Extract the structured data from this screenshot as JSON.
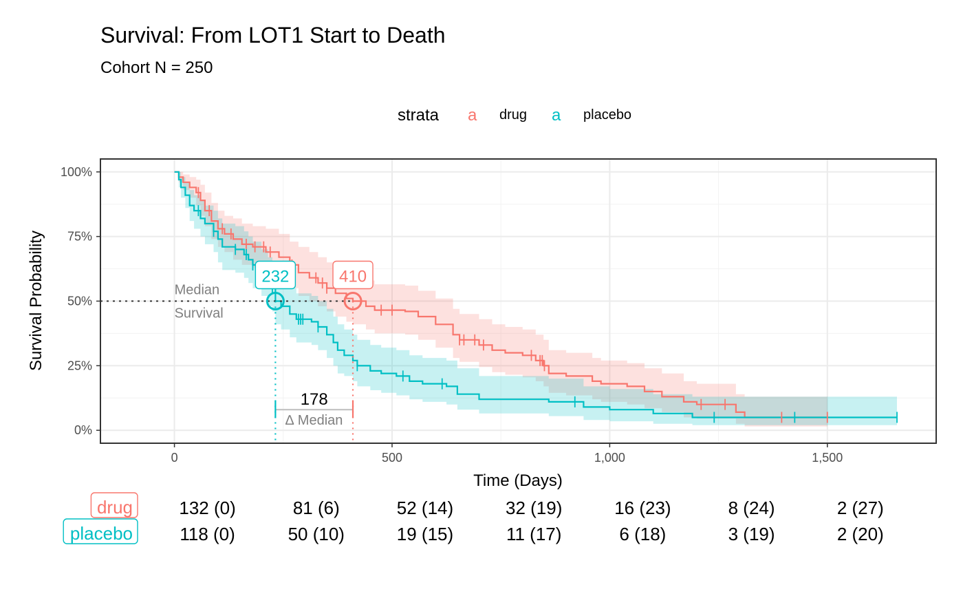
{
  "chart_data": {
    "type": "line",
    "subtype": "kaplan-meier",
    "title": "Survival: From LOT1 Start to Death",
    "subtitle": "Cohort N = 250",
    "xlabel": "Time (Days)",
    "ylabel": "Survival Probability",
    "xlim": [
      -170,
      1750
    ],
    "ylim": [
      -0.05,
      1.05
    ],
    "x_ticks": [
      0,
      500,
      1000,
      1500
    ],
    "x_tick_labels": [
      "0",
      "500",
      "1,000",
      "1,500"
    ],
    "y_ticks": [
      0,
      0.25,
      0.5,
      0.75,
      1
    ],
    "y_tick_labels": [
      "0%",
      "25%",
      "50%",
      "75%",
      "100%"
    ],
    "grid": true,
    "legend": {
      "title": "strata",
      "position": "top",
      "key_glyph": "a"
    },
    "colors": {
      "drug": "#F8766D",
      "placebo": "#00BFC4"
    },
    "series": [
      {
        "name": "drug",
        "color": "#F8766D",
        "steps": [
          [
            0,
            1.0
          ],
          [
            10,
            0.98
          ],
          [
            20,
            0.96
          ],
          [
            35,
            0.94
          ],
          [
            50,
            0.92
          ],
          [
            60,
            0.89
          ],
          [
            70,
            0.85
          ],
          [
            85,
            0.81
          ],
          [
            100,
            0.78
          ],
          [
            115,
            0.76
          ],
          [
            135,
            0.74
          ],
          [
            155,
            0.72
          ],
          [
            180,
            0.71
          ],
          [
            210,
            0.69
          ],
          [
            240,
            0.67
          ],
          [
            265,
            0.64
          ],
          [
            285,
            0.61
          ],
          [
            310,
            0.59
          ],
          [
            330,
            0.57
          ],
          [
            350,
            0.55
          ],
          [
            370,
            0.53
          ],
          [
            395,
            0.51
          ],
          [
            410,
            0.5
          ],
          [
            440,
            0.48
          ],
          [
            460,
            0.465
          ],
          [
            530,
            0.46
          ],
          [
            560,
            0.44
          ],
          [
            600,
            0.41
          ],
          [
            640,
            0.37
          ],
          [
            655,
            0.35
          ],
          [
            700,
            0.33
          ],
          [
            730,
            0.31
          ],
          [
            760,
            0.3
          ],
          [
            800,
            0.29
          ],
          [
            830,
            0.27
          ],
          [
            848,
            0.25
          ],
          [
            860,
            0.22
          ],
          [
            900,
            0.21
          ],
          [
            960,
            0.19
          ],
          [
            980,
            0.18
          ],
          [
            1040,
            0.17
          ],
          [
            1080,
            0.15
          ],
          [
            1120,
            0.13
          ],
          [
            1170,
            0.11
          ],
          [
            1200,
            0.1
          ],
          [
            1290,
            0.07
          ],
          [
            1310,
            0.05
          ],
          [
            1500,
            0.05
          ]
        ],
        "lower": [
          [
            0,
            1.0
          ],
          [
            10,
            0.96
          ],
          [
            20,
            0.93
          ],
          [
            35,
            0.9
          ],
          [
            50,
            0.87
          ],
          [
            60,
            0.83
          ],
          [
            70,
            0.79
          ],
          [
            85,
            0.74
          ],
          [
            100,
            0.71
          ],
          [
            115,
            0.69
          ],
          [
            135,
            0.66
          ],
          [
            155,
            0.64
          ],
          [
            180,
            0.63
          ],
          [
            210,
            0.61
          ],
          [
            240,
            0.58
          ],
          [
            265,
            0.55
          ],
          [
            285,
            0.52
          ],
          [
            310,
            0.5
          ],
          [
            330,
            0.48
          ],
          [
            350,
            0.46
          ],
          [
            370,
            0.44
          ],
          [
            395,
            0.42
          ],
          [
            410,
            0.41
          ],
          [
            440,
            0.39
          ],
          [
            460,
            0.375
          ],
          [
            530,
            0.37
          ],
          [
            560,
            0.35
          ],
          [
            600,
            0.32
          ],
          [
            640,
            0.28
          ],
          [
            655,
            0.265
          ],
          [
            700,
            0.245
          ],
          [
            730,
            0.225
          ],
          [
            760,
            0.215
          ],
          [
            800,
            0.205
          ],
          [
            830,
            0.19
          ],
          [
            848,
            0.17
          ],
          [
            860,
            0.145
          ],
          [
            900,
            0.135
          ],
          [
            960,
            0.12
          ],
          [
            980,
            0.11
          ],
          [
            1040,
            0.1
          ],
          [
            1080,
            0.085
          ],
          [
            1120,
            0.07
          ],
          [
            1170,
            0.05
          ],
          [
            1200,
            0.045
          ],
          [
            1290,
            0.025
          ],
          [
            1310,
            0.015
          ],
          [
            1500,
            0.015
          ]
        ],
        "upper": [
          [
            0,
            1.0
          ],
          [
            10,
            1.0
          ],
          [
            20,
            0.99
          ],
          [
            35,
            0.98
          ],
          [
            50,
            0.97
          ],
          [
            60,
            0.95
          ],
          [
            70,
            0.92
          ],
          [
            85,
            0.88
          ],
          [
            100,
            0.85
          ],
          [
            115,
            0.83
          ],
          [
            135,
            0.82
          ],
          [
            155,
            0.8
          ],
          [
            180,
            0.79
          ],
          [
            210,
            0.78
          ],
          [
            240,
            0.76
          ],
          [
            265,
            0.73
          ],
          [
            285,
            0.71
          ],
          [
            310,
            0.69
          ],
          [
            330,
            0.67
          ],
          [
            350,
            0.65
          ],
          [
            370,
            0.63
          ],
          [
            395,
            0.61
          ],
          [
            410,
            0.6
          ],
          [
            440,
            0.58
          ],
          [
            460,
            0.565
          ],
          [
            530,
            0.56
          ],
          [
            560,
            0.54
          ],
          [
            600,
            0.51
          ],
          [
            640,
            0.47
          ],
          [
            655,
            0.45
          ],
          [
            700,
            0.43
          ],
          [
            730,
            0.41
          ],
          [
            760,
            0.4
          ],
          [
            800,
            0.39
          ],
          [
            830,
            0.37
          ],
          [
            848,
            0.35
          ],
          [
            860,
            0.31
          ],
          [
            900,
            0.3
          ],
          [
            960,
            0.28
          ],
          [
            980,
            0.27
          ],
          [
            1040,
            0.26
          ],
          [
            1080,
            0.24
          ],
          [
            1120,
            0.22
          ],
          [
            1170,
            0.19
          ],
          [
            1200,
            0.18
          ],
          [
            1290,
            0.14
          ],
          [
            1310,
            0.13
          ],
          [
            1500,
            0.13
          ]
        ],
        "censor_times": [
          55,
          80,
          110,
          130,
          165,
          185,
          205,
          220,
          265,
          270,
          325,
          340,
          350,
          475,
          500,
          655,
          665,
          690,
          710,
          820,
          840,
          845,
          850,
          1210,
          1265,
          1395,
          1500
        ]
      },
      {
        "name": "placebo",
        "color": "#00BFC4",
        "steps": [
          [
            0,
            1.0
          ],
          [
            10,
            0.97
          ],
          [
            15,
            0.94
          ],
          [
            25,
            0.91
          ],
          [
            35,
            0.87
          ],
          [
            45,
            0.85
          ],
          [
            60,
            0.82
          ],
          [
            70,
            0.8
          ],
          [
            90,
            0.77
          ],
          [
            100,
            0.74
          ],
          [
            110,
            0.71
          ],
          [
            140,
            0.7
          ],
          [
            160,
            0.68
          ],
          [
            170,
            0.66
          ],
          [
            180,
            0.64
          ],
          [
            200,
            0.61
          ],
          [
            215,
            0.57
          ],
          [
            225,
            0.55
          ],
          [
            232,
            0.5
          ],
          [
            245,
            0.48
          ],
          [
            265,
            0.45
          ],
          [
            280,
            0.43
          ],
          [
            315,
            0.42
          ],
          [
            330,
            0.4
          ],
          [
            350,
            0.37
          ],
          [
            365,
            0.34
          ],
          [
            375,
            0.31
          ],
          [
            390,
            0.29
          ],
          [
            410,
            0.27
          ],
          [
            420,
            0.25
          ],
          [
            450,
            0.23
          ],
          [
            475,
            0.22
          ],
          [
            510,
            0.21
          ],
          [
            540,
            0.19
          ],
          [
            570,
            0.18
          ],
          [
            625,
            0.17
          ],
          [
            650,
            0.14
          ],
          [
            700,
            0.12
          ],
          [
            860,
            0.11
          ],
          [
            940,
            0.09
          ],
          [
            1000,
            0.08
          ],
          [
            1100,
            0.065
          ],
          [
            1190,
            0.05
          ],
          [
            1660,
            0.05
          ]
        ],
        "lower": [
          [
            0,
            1.0
          ],
          [
            10,
            0.94
          ],
          [
            15,
            0.9
          ],
          [
            25,
            0.86
          ],
          [
            35,
            0.81
          ],
          [
            45,
            0.78
          ],
          [
            60,
            0.75
          ],
          [
            70,
            0.72
          ],
          [
            90,
            0.69
          ],
          [
            100,
            0.65
          ],
          [
            110,
            0.62
          ],
          [
            140,
            0.61
          ],
          [
            160,
            0.59
          ],
          [
            170,
            0.57
          ],
          [
            180,
            0.55
          ],
          [
            200,
            0.52
          ],
          [
            215,
            0.48
          ],
          [
            225,
            0.46
          ],
          [
            232,
            0.41
          ],
          [
            245,
            0.39
          ],
          [
            265,
            0.36
          ],
          [
            280,
            0.34
          ],
          [
            315,
            0.33
          ],
          [
            330,
            0.31
          ],
          [
            350,
            0.28
          ],
          [
            365,
            0.25
          ],
          [
            375,
            0.22
          ],
          [
            390,
            0.21
          ],
          [
            410,
            0.19
          ],
          [
            420,
            0.17
          ],
          [
            450,
            0.155
          ],
          [
            475,
            0.145
          ],
          [
            510,
            0.135
          ],
          [
            540,
            0.12
          ],
          [
            570,
            0.11
          ],
          [
            625,
            0.1
          ],
          [
            650,
            0.08
          ],
          [
            700,
            0.065
          ],
          [
            860,
            0.055
          ],
          [
            940,
            0.04
          ],
          [
            1000,
            0.035
          ],
          [
            1100,
            0.025
          ],
          [
            1190,
            0.02
          ],
          [
            1660,
            0.02
          ]
        ],
        "upper": [
          [
            0,
            1.0
          ],
          [
            10,
            1.0
          ],
          [
            15,
            0.98
          ],
          [
            25,
            0.96
          ],
          [
            35,
            0.93
          ],
          [
            45,
            0.91
          ],
          [
            60,
            0.89
          ],
          [
            70,
            0.87
          ],
          [
            90,
            0.85
          ],
          [
            100,
            0.82
          ],
          [
            110,
            0.8
          ],
          [
            140,
            0.79
          ],
          [
            160,
            0.77
          ],
          [
            170,
            0.75
          ],
          [
            180,
            0.73
          ],
          [
            200,
            0.7
          ],
          [
            215,
            0.67
          ],
          [
            225,
            0.65
          ],
          [
            232,
            0.6
          ],
          [
            245,
            0.58
          ],
          [
            265,
            0.55
          ],
          [
            280,
            0.53
          ],
          [
            315,
            0.52
          ],
          [
            330,
            0.5
          ],
          [
            350,
            0.47
          ],
          [
            365,
            0.44
          ],
          [
            375,
            0.41
          ],
          [
            390,
            0.39
          ],
          [
            410,
            0.37
          ],
          [
            420,
            0.35
          ],
          [
            450,
            0.33
          ],
          [
            475,
            0.32
          ],
          [
            510,
            0.31
          ],
          [
            540,
            0.29
          ],
          [
            570,
            0.28
          ],
          [
            625,
            0.27
          ],
          [
            650,
            0.24
          ],
          [
            700,
            0.21
          ],
          [
            860,
            0.2
          ],
          [
            940,
            0.17
          ],
          [
            1000,
            0.16
          ],
          [
            1100,
            0.14
          ],
          [
            1190,
            0.13
          ],
          [
            1660,
            0.13
          ]
        ],
        "censor_times": [
          55,
          90,
          140,
          165,
          180,
          225,
          285,
          290,
          295,
          330,
          420,
          525,
          615,
          920,
          1240,
          1425,
          1660
        ]
      }
    ],
    "annotations": {
      "median_text_line1": "Median",
      "median_text_line2": "Survival",
      "medians": [
        {
          "series": "placebo",
          "value": 232,
          "label": "232"
        },
        {
          "series": "drug",
          "value": 410,
          "label": "410"
        }
      ],
      "delta": {
        "value": 178,
        "label": "178",
        "text": "∆ Median",
        "y": 0.08
      }
    },
    "risk_table": {
      "times": [
        0,
        250,
        500,
        750,
        1000,
        1250,
        1500
      ],
      "rows": [
        {
          "name": "drug",
          "color": "#F8766D",
          "values": [
            "132 (0)",
            "81 (6)",
            "52 (14)",
            "32 (19)",
            "16 (23)",
            "8 (24)",
            "2 (27)"
          ]
        },
        {
          "name": "placebo",
          "color": "#00BFC4",
          "values": [
            "118 (0)",
            "50 (10)",
            "19 (15)",
            "11 (17)",
            "6 (18)",
            "3 (19)",
            "2 (20)"
          ]
        }
      ]
    }
  }
}
